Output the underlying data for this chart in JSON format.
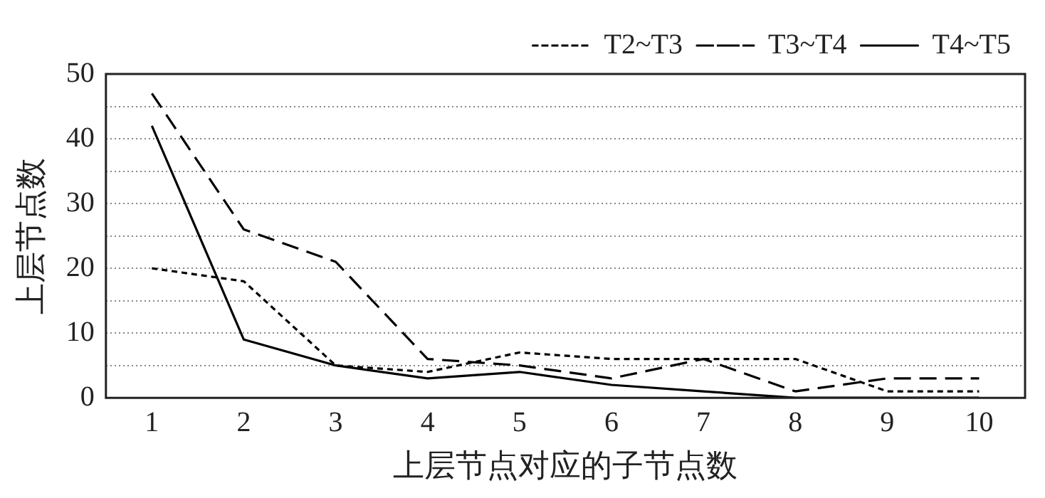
{
  "chart_data": {
    "type": "line",
    "xlabel": "上层节点对应的子节点数",
    "ylabel": "上层节点数",
    "categories": [
      "1",
      "2",
      "3",
      "4",
      "5",
      "6",
      "7",
      "8",
      "9",
      "10"
    ],
    "series": [
      {
        "name": "T2~T3",
        "color": "#000000",
        "line_style": "dotted",
        "values": [
          20,
          18,
          5,
          4,
          7,
          6,
          6,
          6,
          1,
          1
        ]
      },
      {
        "name": "T3~T4",
        "color": "#000000",
        "line_style": "dashed",
        "values": [
          47,
          26,
          21,
          6,
          5,
          3,
          6,
          1,
          3,
          3
        ]
      },
      {
        "name": "T4~T5",
        "color": "#000000",
        "line_style": "solid",
        "values": [
          42,
          9,
          5,
          3,
          4,
          2,
          1,
          0,
          0,
          0
        ]
      }
    ],
    "ylim": [
      0,
      50
    ],
    "yticks": [
      0,
      {
        "value": 5,
        "label": null
      },
      10,
      {
        "value": 15,
        "label": null
      },
      20,
      {
        "value": 25,
        "label": null
      },
      30,
      {
        "value": 35,
        "label": null
      },
      40,
      {
        "value": 45,
        "label": null
      },
      50
    ],
    "grid": "y",
    "legend": "top right",
    "marker": "none"
  }
}
